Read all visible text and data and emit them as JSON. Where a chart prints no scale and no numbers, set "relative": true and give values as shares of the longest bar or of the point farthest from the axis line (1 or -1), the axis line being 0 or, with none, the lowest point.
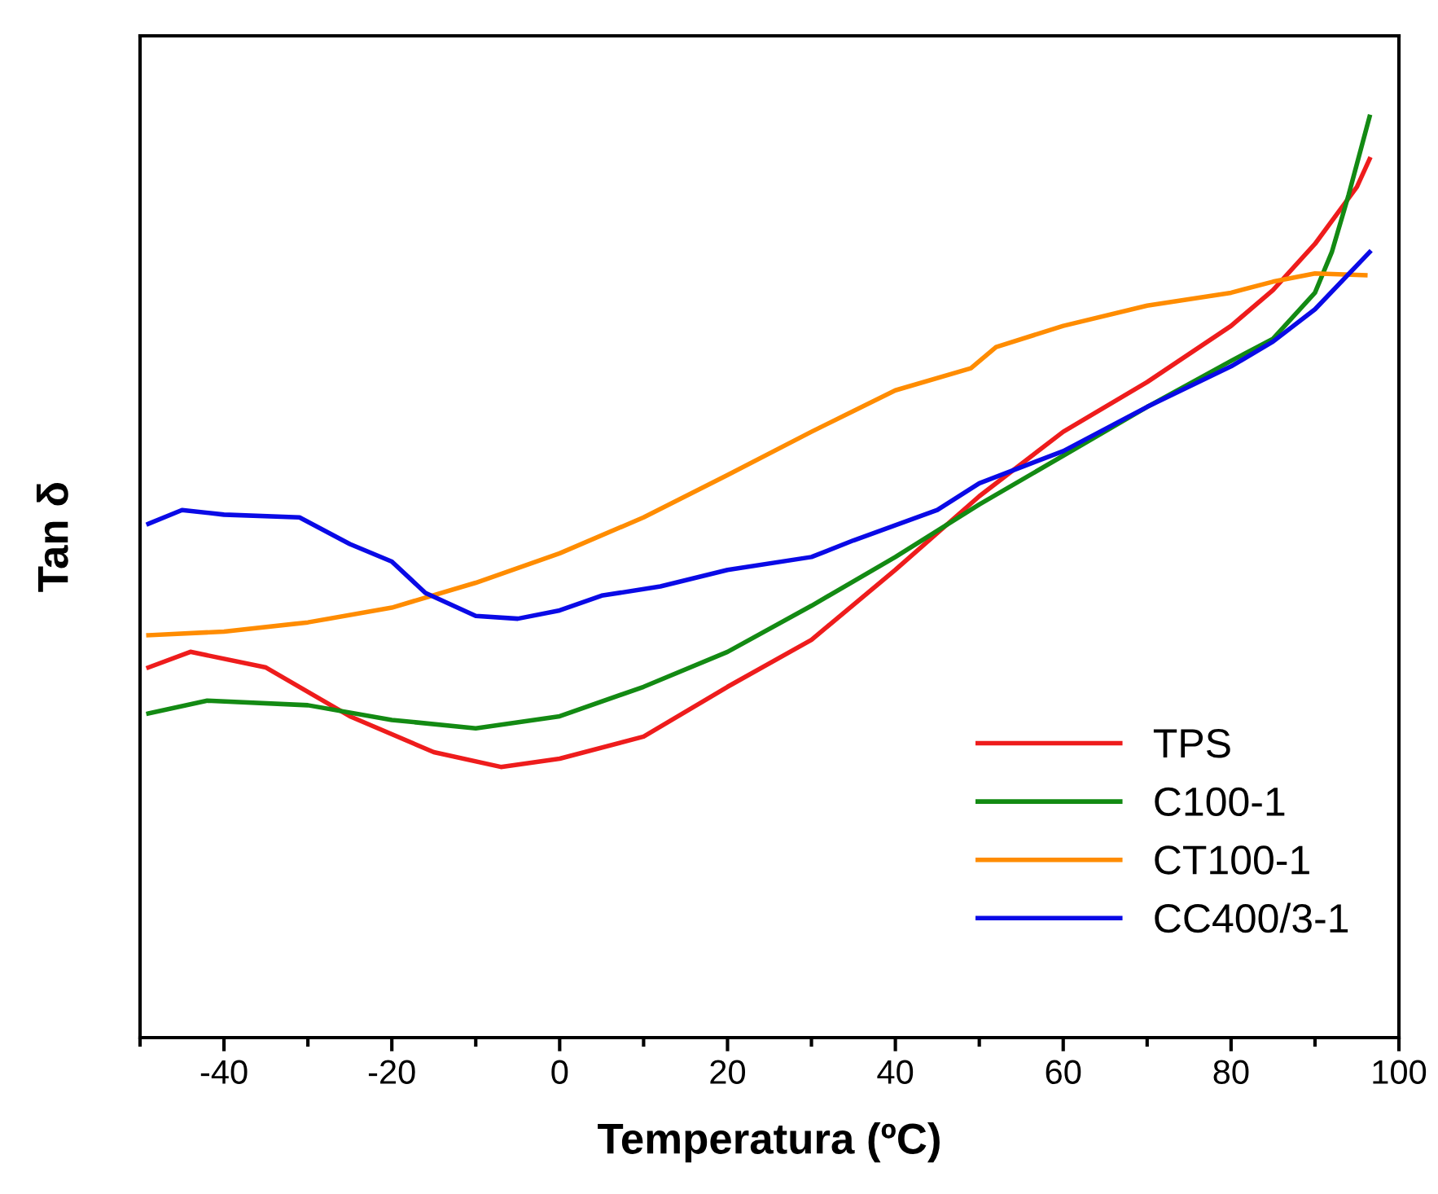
{
  "chart_data": {
    "type": "line",
    "xlabel": "Temperatura (ºC)",
    "ylabel": "Tan δ",
    "relative": true,
    "xlim": [
      -50,
      100
    ],
    "xticks": [
      -40,
      -20,
      0,
      20,
      40,
      60,
      80,
      100
    ],
    "legend": "bottom right",
    "grid": false,
    "marker": "none",
    "line_style": "solid",
    "series": [
      {
        "name": "TPS",
        "color": "#ee1c1c",
        "x": [
          -49,
          -44,
          -35,
          -25,
          -15,
          -7,
          0,
          10,
          20,
          30,
          40,
          50,
          60,
          70,
          80,
          85,
          90,
          95,
          96.5
        ],
        "values": [
          0.402,
          0.419,
          0.402,
          0.349,
          0.31,
          0.294,
          0.303,
          0.327,
          0.381,
          0.432,
          0.508,
          0.588,
          0.658,
          0.712,
          0.773,
          0.812,
          0.862,
          0.924,
          0.954
        ]
      },
      {
        "name": "C100-1",
        "color": "#138a13",
        "x": [
          -49,
          -42,
          -30,
          -20,
          -10,
          0,
          10,
          20,
          30,
          40,
          50,
          60,
          70,
          80,
          85,
          90,
          92,
          94,
          96.5
        ],
        "values": [
          0.352,
          0.366,
          0.361,
          0.345,
          0.336,
          0.349,
          0.381,
          0.419,
          0.469,
          0.522,
          0.579,
          0.632,
          0.685,
          0.735,
          0.759,
          0.809,
          0.853,
          0.915,
          1
        ]
      },
      {
        "name": "CT100-1",
        "color": "#ff8c00",
        "x": [
          -49,
          -40,
          -30,
          -20,
          -10,
          0,
          10,
          20,
          30,
          40,
          49,
          52,
          60,
          70,
          80,
          85,
          90,
          96
        ],
        "values": [
          0.437,
          0.441,
          0.451,
          0.467,
          0.494,
          0.526,
          0.565,
          0.611,
          0.658,
          0.703,
          0.727,
          0.75,
          0.773,
          0.795,
          0.809,
          0.821,
          0.83,
          0.828
        ]
      },
      {
        "name": "CC400/3-1",
        "color": "#0a0ae6",
        "x": [
          -49,
          -45,
          -40,
          -31,
          -25,
          -20,
          -16,
          -10,
          -5,
          0,
          5,
          12,
          20,
          30,
          35,
          45,
          50,
          60,
          70,
          80,
          85,
          90,
          96.5
        ],
        "values": [
          0.558,
          0.573,
          0.568,
          0.565,
          0.536,
          0.517,
          0.483,
          0.458,
          0.455,
          0.464,
          0.48,
          0.49,
          0.508,
          0.522,
          0.54,
          0.573,
          0.602,
          0.637,
          0.685,
          0.729,
          0.756,
          0.791,
          0.853
        ]
      }
    ]
  }
}
